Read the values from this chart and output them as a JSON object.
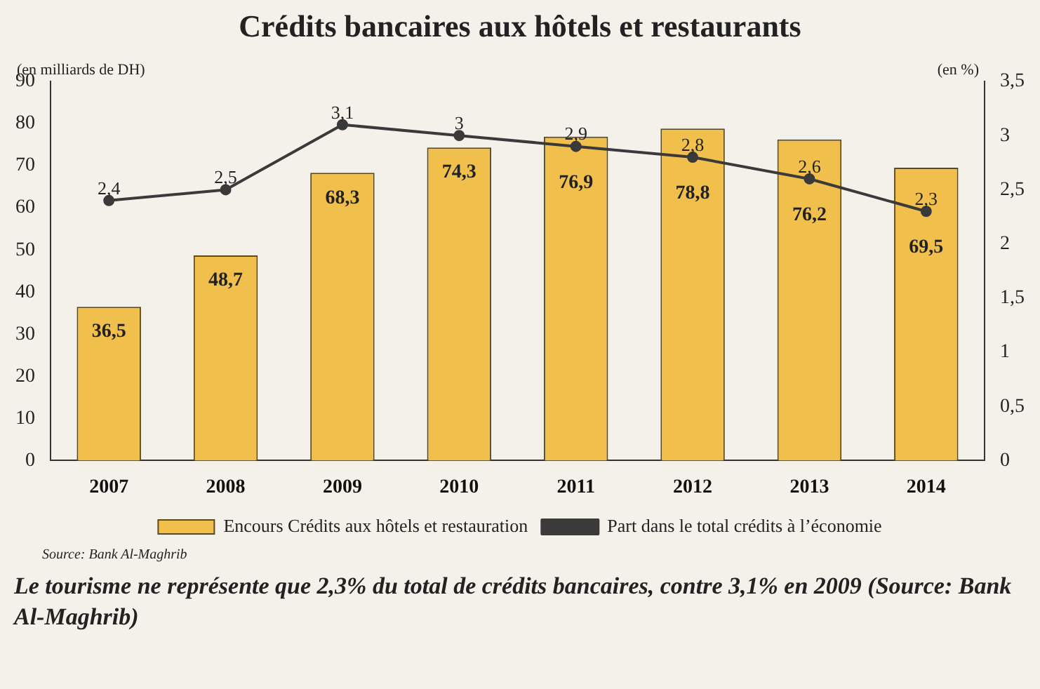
{
  "chart_data": {
    "type": "bar",
    "title": "Crédits bancaires aux hôtels et restaurants",
    "ylabel": "(en milliards de DH)",
    "y2label": "(en %)",
    "categories": [
      "2007",
      "2008",
      "2009",
      "2010",
      "2011",
      "2012",
      "2013",
      "2014"
    ],
    "series": [
      {
        "name": "Encours Crédits aux hôtels et restauration",
        "color": "#f0bf4c",
        "values": [
          36.5,
          48.7,
          68.3,
          74.3,
          76.9,
          78.8,
          76.2,
          69.5
        ],
        "value_labels": [
          "36,5",
          "48,7",
          "68,3",
          "74,3",
          "76,9",
          "78,8",
          "76,2",
          "69,5"
        ]
      },
      {
        "name": "Part dans le total crédits à l’économie",
        "type": "line",
        "axis": "y2",
        "color": "#3a3a3a",
        "values": [
          2.4,
          2.5,
          3.1,
          3.0,
          2.9,
          2.8,
          2.6,
          2.3
        ],
        "value_labels": [
          "2,4",
          "2,5",
          "3,1",
          "3",
          "2,9",
          "2,8",
          "2,6",
          "2,3"
        ]
      }
    ],
    "ylim": [
      0,
      90
    ],
    "yticks": [
      0,
      10,
      20,
      30,
      40,
      50,
      60,
      70,
      80,
      90
    ],
    "y2lim": [
      0,
      3.5
    ],
    "y2ticks": [
      0,
      {
        "value": 0.5,
        "label": "0,5"
      },
      1,
      {
        "value": 1.5,
        "label": "1,5"
      },
      2,
      {
        "value": 2.5,
        "label": "2,5"
      },
      3,
      {
        "value": 3.5,
        "label": "3,5"
      }
    ],
    "grid": false,
    "legend": "bottom",
    "marker": "circle",
    "line_style": "solid",
    "annotations": [
      "Source: Bank Al-Maghrib",
      "Le tourisme ne représente que 2,3% du total de crédits bancaires, contre 3,1% en 2009 (Source: Bank Al-Maghrib)"
    ]
  }
}
